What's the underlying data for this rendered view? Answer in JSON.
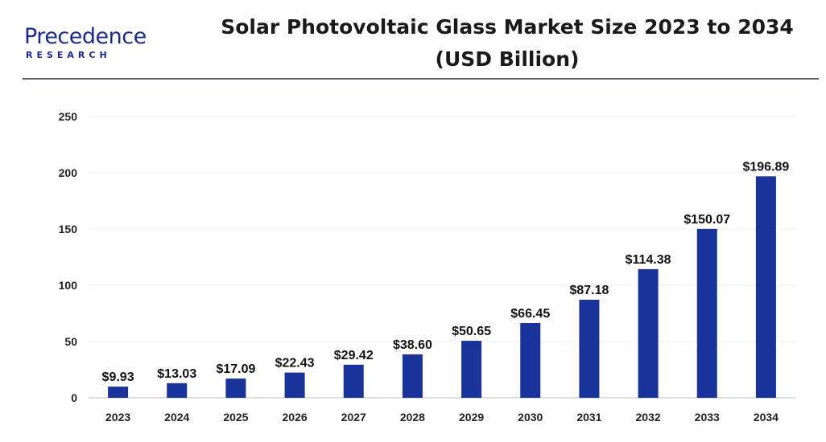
{
  "brand": {
    "logo_text": "Precedence",
    "logo_subtext": "RESEARCH",
    "color": "#1b2a8f"
  },
  "header": {
    "title_line1": "Solar Photovoltaic Glass Market Size 2023 to 2034",
    "title_line2": "(USD Billion)"
  },
  "chart_data": {
    "type": "bar",
    "title": "Solar Photovoltaic Glass Market Size 2023 to 2034 (USD Billion)",
    "xlabel": "",
    "ylabel": "",
    "categories": [
      "2023",
      "2024",
      "2025",
      "2026",
      "2027",
      "2028",
      "2029",
      "2030",
      "2031",
      "2032",
      "2033",
      "2034"
    ],
    "values": [
      9.93,
      13.03,
      17.09,
      22.43,
      29.42,
      38.6,
      50.65,
      66.45,
      87.18,
      114.38,
      150.07,
      196.89
    ],
    "value_labels": [
      "$9.93",
      "$13.03",
      "$17.09",
      "$22.43",
      "$29.42",
      "$38.60",
      "$50.65",
      "$66.45",
      "$87.18",
      "$114.38",
      "$150.07",
      "$196.89"
    ],
    "yticks": [
      0,
      50,
      100,
      150,
      200,
      250
    ],
    "ylim": [
      0,
      250
    ],
    "grid": true,
    "legend": "none",
    "bar_color": "#19339a"
  }
}
